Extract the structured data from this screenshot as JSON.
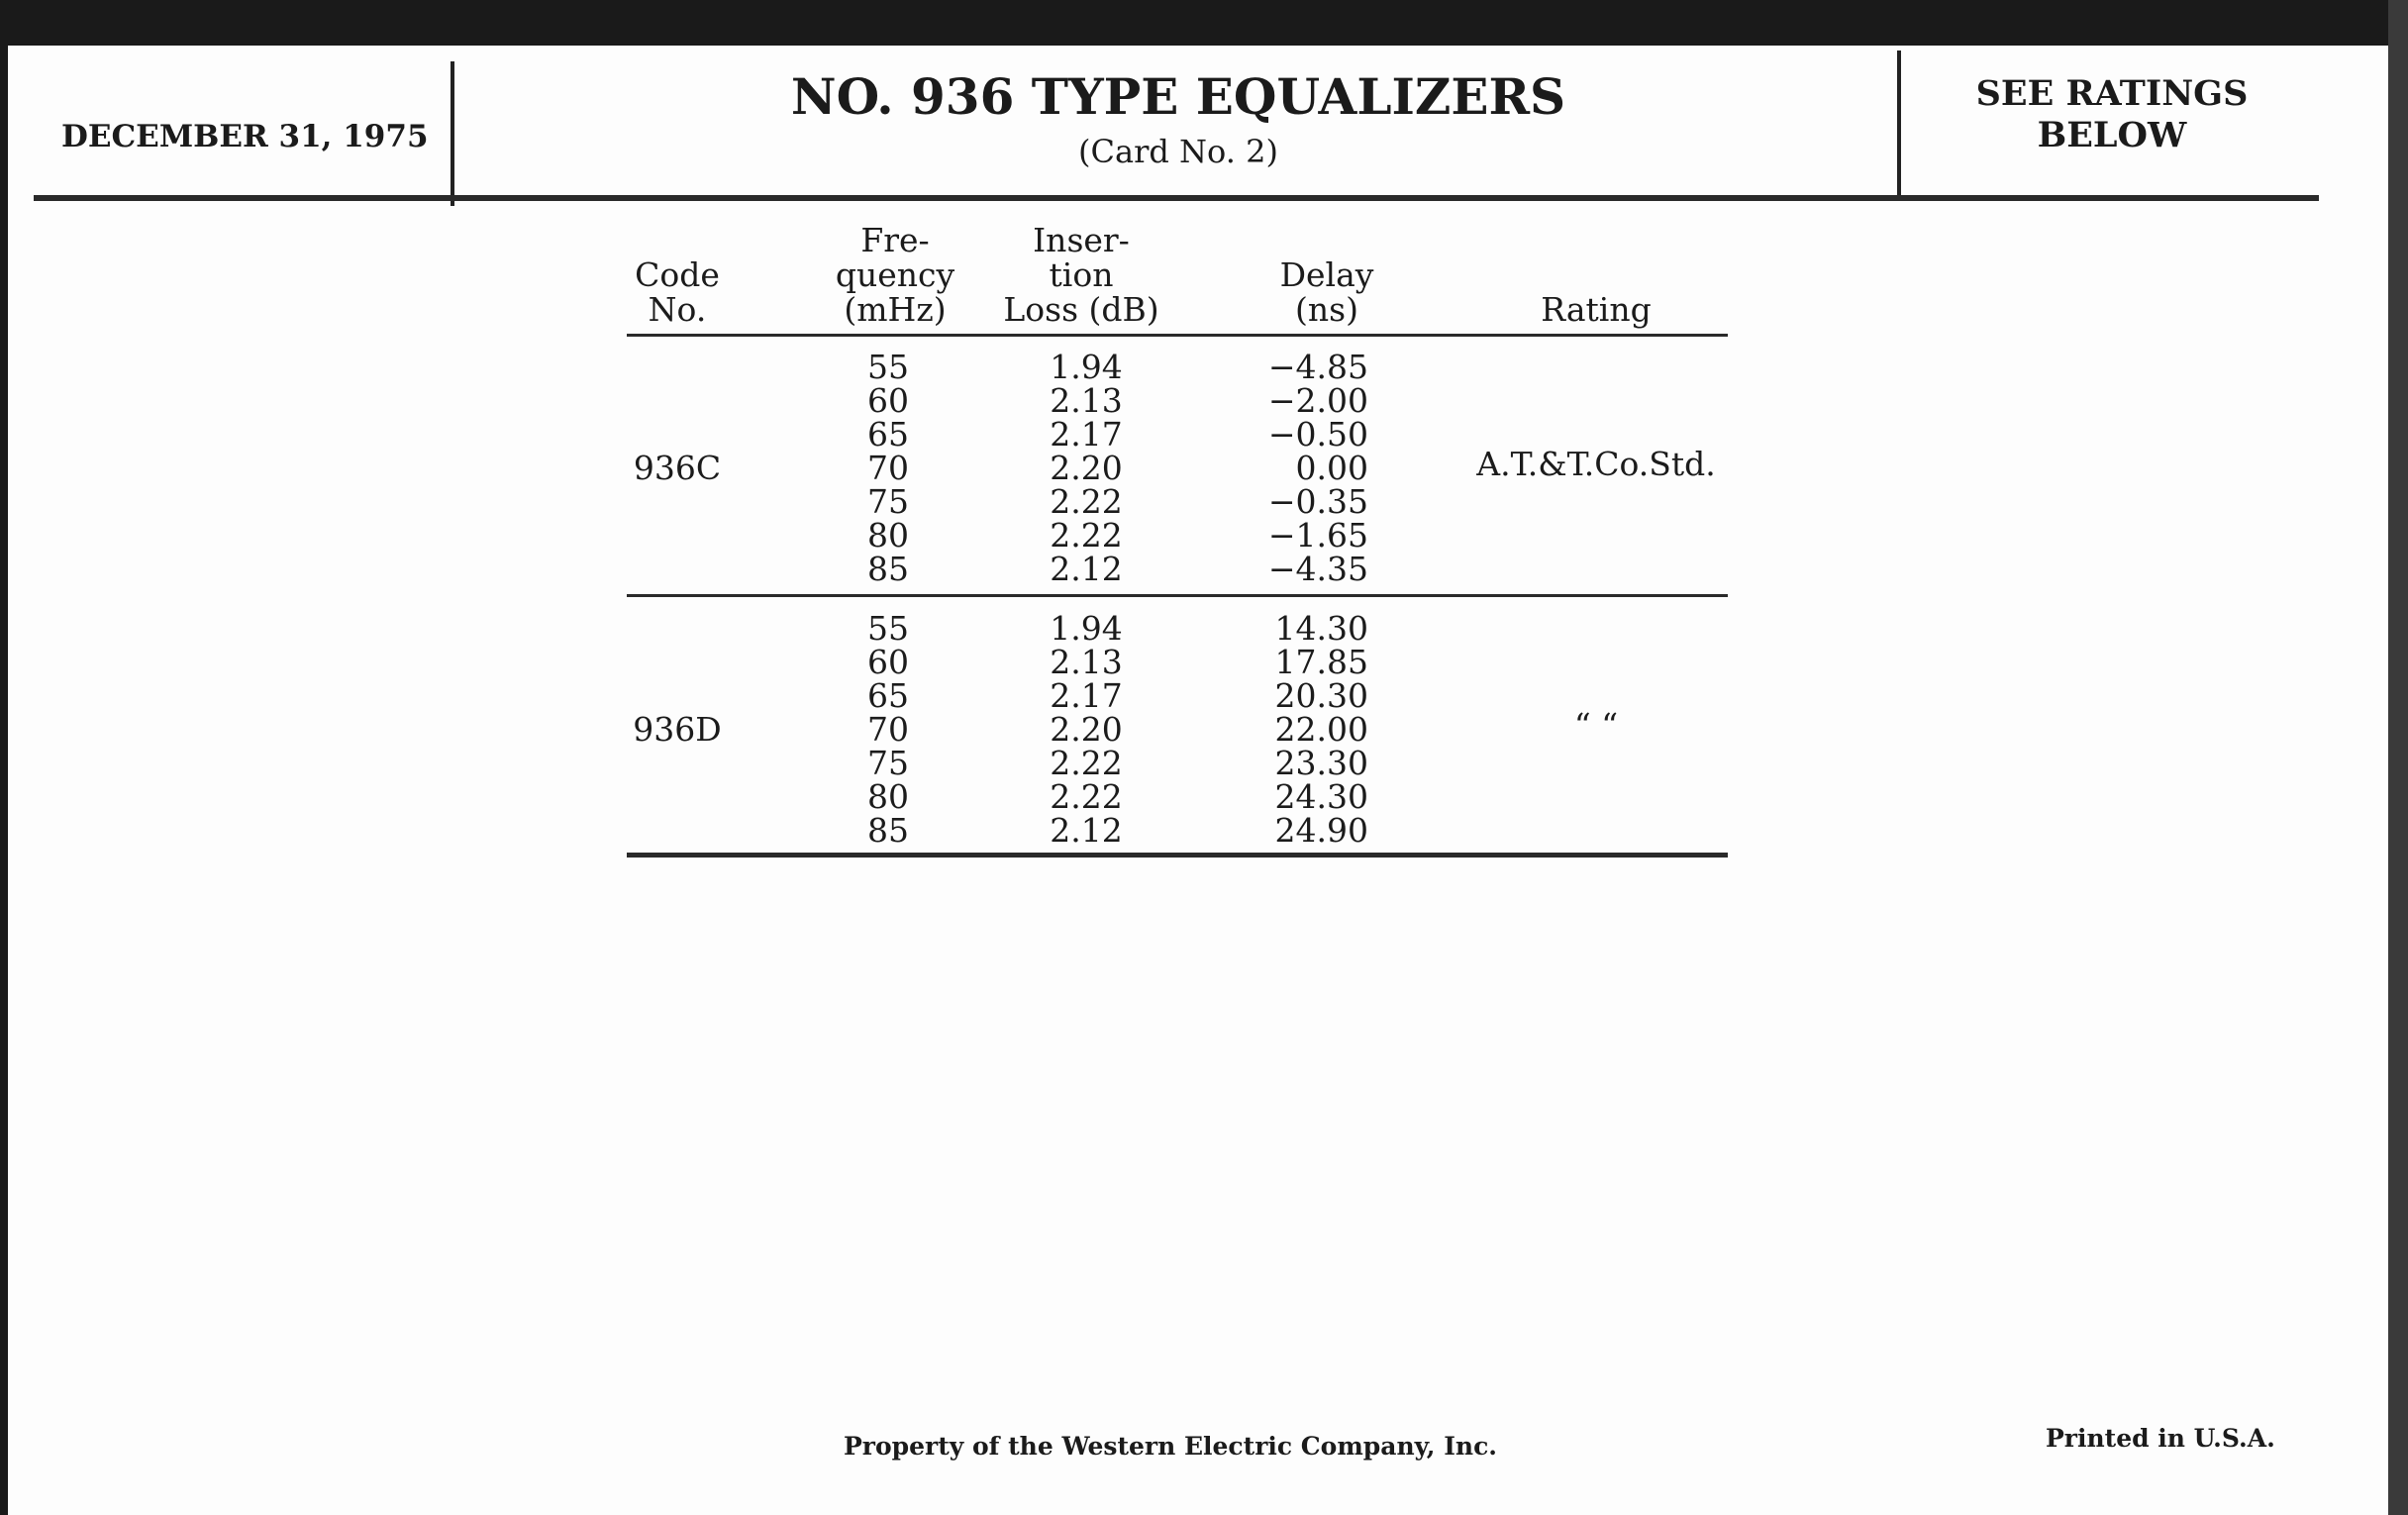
{
  "header": {
    "date": "DECEMBER 31, 1975",
    "title": "NO. 936 TYPE EQUALIZERS",
    "subtitle": "(Card No. 2)",
    "ratings_note_line1": "SEE RATINGS",
    "ratings_note_line2": "BELOW"
  },
  "table": {
    "columns": [
      [
        "Code",
        "No."
      ],
      [
        "Fre-",
        "quency",
        "(mHz)"
      ],
      [
        "Inser-",
        "tion",
        "Loss (dB)"
      ],
      [
        "Delay",
        "(ns)"
      ],
      [
        "Rating"
      ]
    ],
    "groups": [
      {
        "code": "936C",
        "rating": "A.T.&T.Co.Std.",
        "frequency": [
          "55",
          "60",
          "65",
          "70",
          "75",
          "80",
          "85"
        ],
        "loss": [
          "1.94",
          "2.13",
          "2.17",
          "2.20",
          "2.22",
          "2.22",
          "2.12"
        ],
        "delay": [
          "−4.85",
          "−2.00",
          "−0.50",
          "0.00",
          "−0.35",
          "−1.65",
          "−4.35"
        ]
      },
      {
        "code": "936D",
        "rating": "“          “",
        "frequency": [
          "55",
          "60",
          "65",
          "70",
          "75",
          "80",
          "85"
        ],
        "loss": [
          "1.94",
          "2.13",
          "2.17",
          "2.20",
          "2.22",
          "2.22",
          "2.12"
        ],
        "delay": [
          "14.30",
          "17.85",
          "20.30",
          "22.00",
          "23.30",
          "24.30",
          "24.90"
        ]
      }
    ]
  },
  "footer": {
    "property": "Property of the Western Electric Company, Inc.",
    "printed": "Printed in U.S.A."
  }
}
